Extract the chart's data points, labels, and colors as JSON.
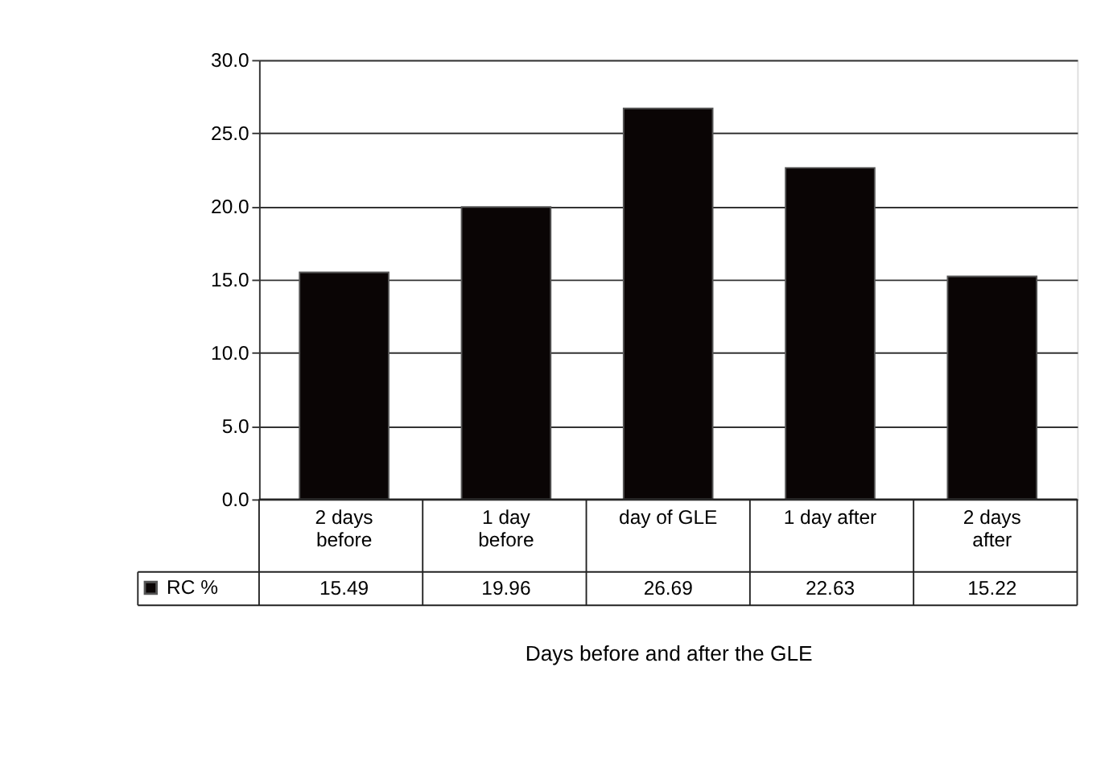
{
  "chart_data": {
    "type": "bar",
    "xlabel": "Days before and after the GLE",
    "categories": [
      "2 days before",
      "1 day before",
      "day of GLE",
      "1 day after",
      "2 days after"
    ],
    "series": [
      {
        "name": "RC %",
        "color": "#0a0505",
        "values": [
          15.49,
          19.96,
          26.69,
          22.63,
          15.22
        ]
      }
    ],
    "ylim": [
      0,
      30
    ],
    "yticks": [
      {
        "value": 0,
        "label": "0.0"
      },
      {
        "value": 5,
        "label": "5.0"
      },
      {
        "value": 10,
        "label": "10.0"
      },
      {
        "value": 15,
        "label": "15.0"
      },
      {
        "value": 20,
        "label": "20.0"
      },
      {
        "value": 25,
        "label": "25.0"
      },
      {
        "value": 30,
        "label": "30.0"
      }
    ],
    "grid": "y",
    "legend": "bottom left",
    "data_labels": true
  }
}
